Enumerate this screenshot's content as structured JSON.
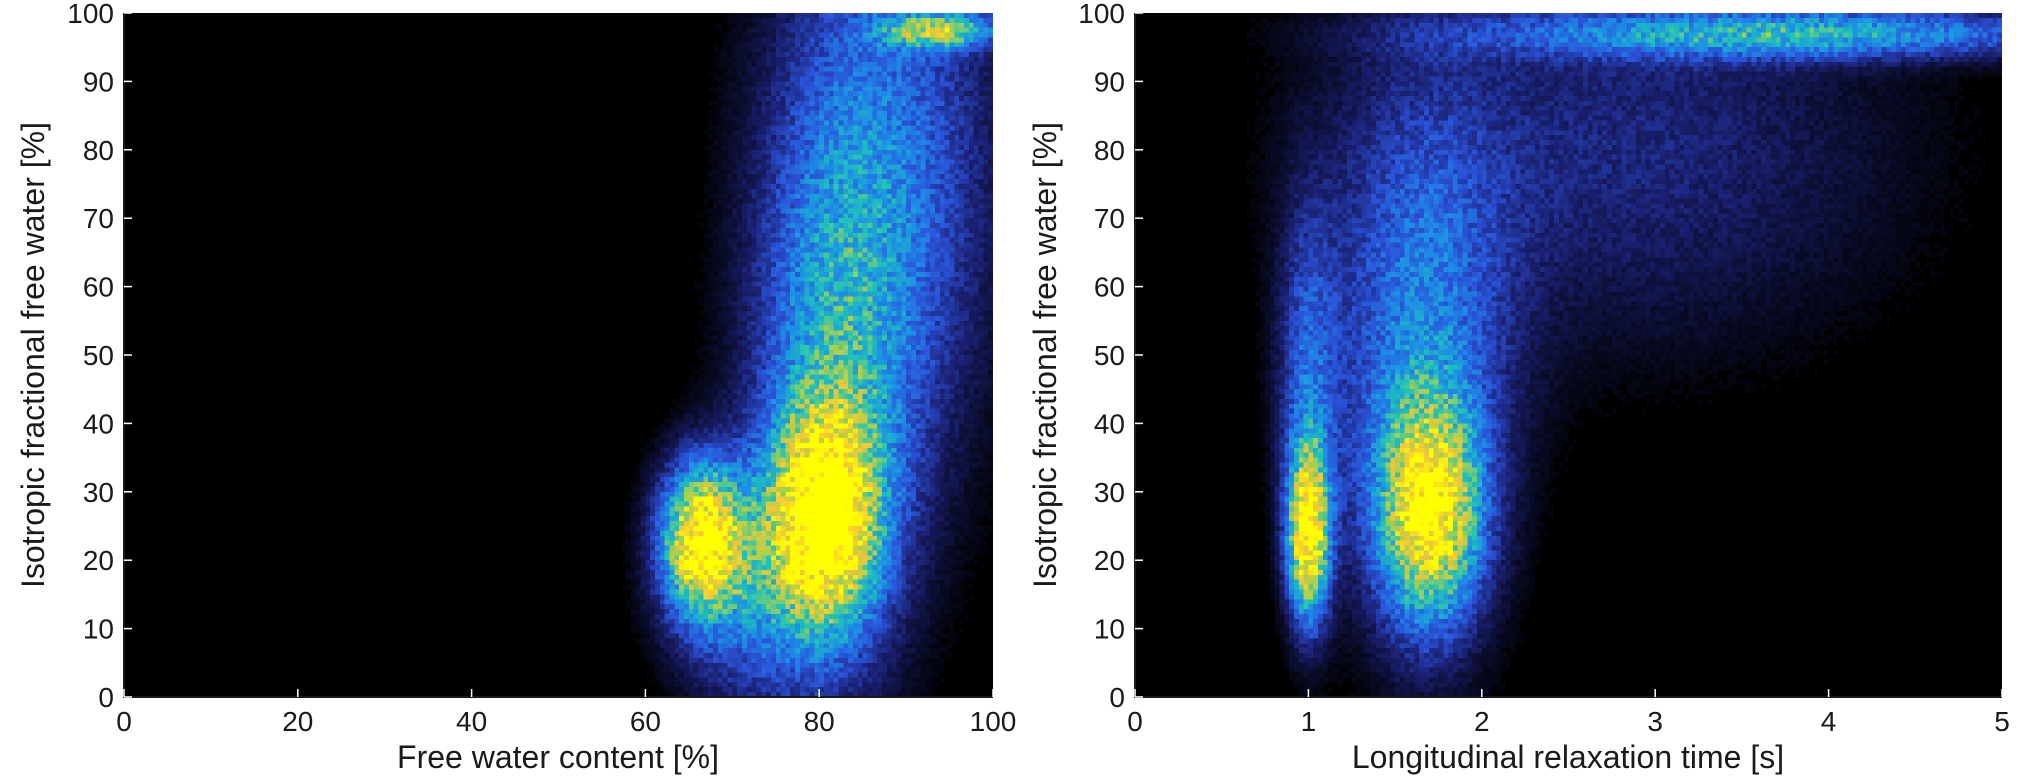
{
  "chart_data": [
    {
      "type": "heatmap",
      "title": "",
      "xlabel": "Free water content [%]",
      "ylabel": "Isotropic fractional free water [%]",
      "xlim": [
        0,
        100
      ],
      "ylim": [
        0,
        100
      ],
      "xticks": [
        "0",
        "20",
        "40",
        "60",
        "80",
        "100"
      ],
      "yticks": [
        "0",
        "10",
        "20",
        "30",
        "40",
        "50",
        "60",
        "70",
        "80",
        "90",
        "100"
      ],
      "colormap": [
        "#000000",
        "#1a1f6e",
        "#2a52d8",
        "#1d8fe6",
        "#1fc2b9",
        "#a8d04e",
        "#f5c53a",
        "#ffff00"
      ],
      "background": "#000000",
      "density_peaks": [
        {
          "x": 66.5,
          "y": 23,
          "sx": 3.2,
          "sy": 7.5,
          "intensity": 1.0
        },
        {
          "x": 80.5,
          "y": 26,
          "sx": 4.2,
          "sy": 10.5,
          "intensity": 0.95
        },
        {
          "x": 82,
          "y": 45,
          "sx": 6.5,
          "sy": 28,
          "intensity": 0.42
        },
        {
          "x": 94,
          "y": 97.5,
          "sx": 4.5,
          "sy": 1.8,
          "intensity": 0.6
        },
        {
          "x": 88,
          "y": 80,
          "sx": 9,
          "sy": 30,
          "intensity": 0.32
        },
        {
          "x": 72,
          "y": 15,
          "sx": 6,
          "sy": 12,
          "intensity": 0.3
        }
      ]
    },
    {
      "type": "heatmap",
      "title": "",
      "xlabel": "Longitudinal relaxation time [s]",
      "ylabel": "Isotropic fractional free water [%]",
      "xlim": [
        0,
        5
      ],
      "ylim": [
        0,
        100
      ],
      "xticks": [
        "0",
        "1",
        "2",
        "3",
        "4",
        "5"
      ],
      "yticks": [
        "0",
        "10",
        "20",
        "30",
        "40",
        "50",
        "60",
        "70",
        "80",
        "90",
        "100"
      ],
      "colormap": [
        "#000000",
        "#1a1f6e",
        "#2a52d8",
        "#1d8fe6",
        "#1fc2b9",
        "#a8d04e",
        "#f5c53a",
        "#ffff00"
      ],
      "background": "#000000",
      "density_peaks": [
        {
          "x": 1.0,
          "y": 24,
          "sx": 0.08,
          "sy": 8.5,
          "intensity": 1.0
        },
        {
          "x": 1.7,
          "y": 27,
          "sx": 0.2,
          "sy": 11,
          "intensity": 0.88
        },
        {
          "x": 1.65,
          "y": 50,
          "sx": 0.35,
          "sy": 25,
          "intensity": 0.38
        },
        {
          "x": 3.8,
          "y": 97,
          "sx": 1.2,
          "sy": 2.5,
          "intensity": 0.5
        },
        {
          "x": 2.8,
          "y": 80,
          "sx": 1.1,
          "sy": 20,
          "intensity": 0.18
        },
        {
          "x": 1.0,
          "y": 45,
          "sx": 0.12,
          "sy": 18,
          "intensity": 0.3
        }
      ]
    }
  ]
}
